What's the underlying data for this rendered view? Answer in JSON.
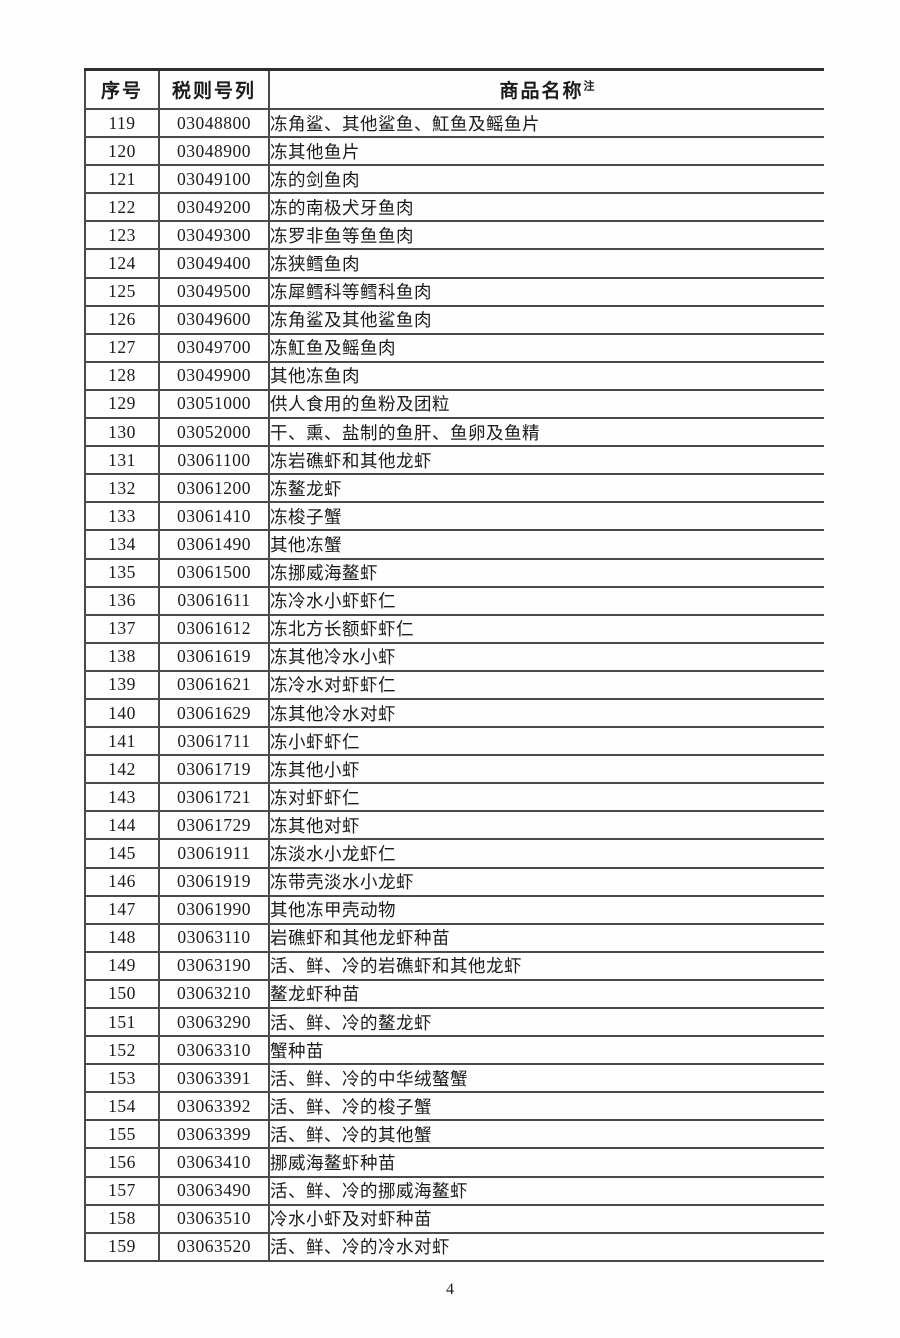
{
  "page": {
    "number": "4",
    "background_color": "#fefefe",
    "text_color": "#1b1b1b",
    "border_color": "#4a4a4a"
  },
  "table": {
    "headers": {
      "index": "序号",
      "tariff_code": "税则号列",
      "product_name": "商品名称",
      "product_name_note": "注"
    },
    "rows": [
      {
        "no": "119",
        "code": "03048800",
        "name": "冻角鲨、其他鲨鱼、魟鱼及鳐鱼片"
      },
      {
        "no": "120",
        "code": "03048900",
        "name": "冻其他鱼片"
      },
      {
        "no": "121",
        "code": "03049100",
        "name": "冻的剑鱼肉"
      },
      {
        "no": "122",
        "code": "03049200",
        "name": "冻的南极犬牙鱼肉"
      },
      {
        "no": "123",
        "code": "03049300",
        "name": "冻罗非鱼等鱼鱼肉"
      },
      {
        "no": "124",
        "code": "03049400",
        "name": "冻狭鳕鱼肉"
      },
      {
        "no": "125",
        "code": "03049500",
        "name": "冻犀鳕科等鳕科鱼肉"
      },
      {
        "no": "126",
        "code": "03049600",
        "name": "冻角鲨及其他鲨鱼肉"
      },
      {
        "no": "127",
        "code": "03049700",
        "name": "冻魟鱼及鳐鱼肉"
      },
      {
        "no": "128",
        "code": "03049900",
        "name": "其他冻鱼肉"
      },
      {
        "no": "129",
        "code": "03051000",
        "name": "供人食用的鱼粉及团粒"
      },
      {
        "no": "130",
        "code": "03052000",
        "name": "干、熏、盐制的鱼肝、鱼卵及鱼精"
      },
      {
        "no": "131",
        "code": "03061100",
        "name": "冻岩礁虾和其他龙虾"
      },
      {
        "no": "132",
        "code": "03061200",
        "name": "冻鳌龙虾"
      },
      {
        "no": "133",
        "code": "03061410",
        "name": "冻梭子蟹"
      },
      {
        "no": "134",
        "code": "03061490",
        "name": "其他冻蟹"
      },
      {
        "no": "135",
        "code": "03061500",
        "name": "冻挪威海鳌虾"
      },
      {
        "no": "136",
        "code": "03061611",
        "name": "冻冷水小虾虾仁"
      },
      {
        "no": "137",
        "code": "03061612",
        "name": "冻北方长额虾虾仁"
      },
      {
        "no": "138",
        "code": "03061619",
        "name": "冻其他冷水小虾"
      },
      {
        "no": "139",
        "code": "03061621",
        "name": "冻冷水对虾虾仁"
      },
      {
        "no": "140",
        "code": "03061629",
        "name": "冻其他冷水对虾"
      },
      {
        "no": "141",
        "code": "03061711",
        "name": "冻小虾虾仁"
      },
      {
        "no": "142",
        "code": "03061719",
        "name": "冻其他小虾"
      },
      {
        "no": "143",
        "code": "03061721",
        "name": "冻对虾虾仁"
      },
      {
        "no": "144",
        "code": "03061729",
        "name": "冻其他对虾"
      },
      {
        "no": "145",
        "code": "03061911",
        "name": "冻淡水小龙虾仁"
      },
      {
        "no": "146",
        "code": "03061919",
        "name": "冻带壳淡水小龙虾"
      },
      {
        "no": "147",
        "code": "03061990",
        "name": "其他冻甲壳动物"
      },
      {
        "no": "148",
        "code": "03063110",
        "name": "岩礁虾和其他龙虾种苗"
      },
      {
        "no": "149",
        "code": "03063190",
        "name": "活、鲜、冷的岩礁虾和其他龙虾"
      },
      {
        "no": "150",
        "code": "03063210",
        "name": "鳌龙虾种苗"
      },
      {
        "no": "151",
        "code": "03063290",
        "name": "活、鲜、冷的鳌龙虾"
      },
      {
        "no": "152",
        "code": "03063310",
        "name": "蟹种苗"
      },
      {
        "no": "153",
        "code": "03063391",
        "name": "活、鲜、冷的中华绒螯蟹"
      },
      {
        "no": "154",
        "code": "03063392",
        "name": "活、鲜、冷的梭子蟹"
      },
      {
        "no": "155",
        "code": "03063399",
        "name": "活、鲜、冷的其他蟹"
      },
      {
        "no": "156",
        "code": "03063410",
        "name": "挪威海鳌虾种苗"
      },
      {
        "no": "157",
        "code": "03063490",
        "name": "活、鲜、冷的挪威海鳌虾"
      },
      {
        "no": "158",
        "code": "03063510",
        "name": "冷水小虾及对虾种苗"
      },
      {
        "no": "159",
        "code": "03063520",
        "name": "活、鲜、冷的冷水对虾"
      }
    ]
  }
}
